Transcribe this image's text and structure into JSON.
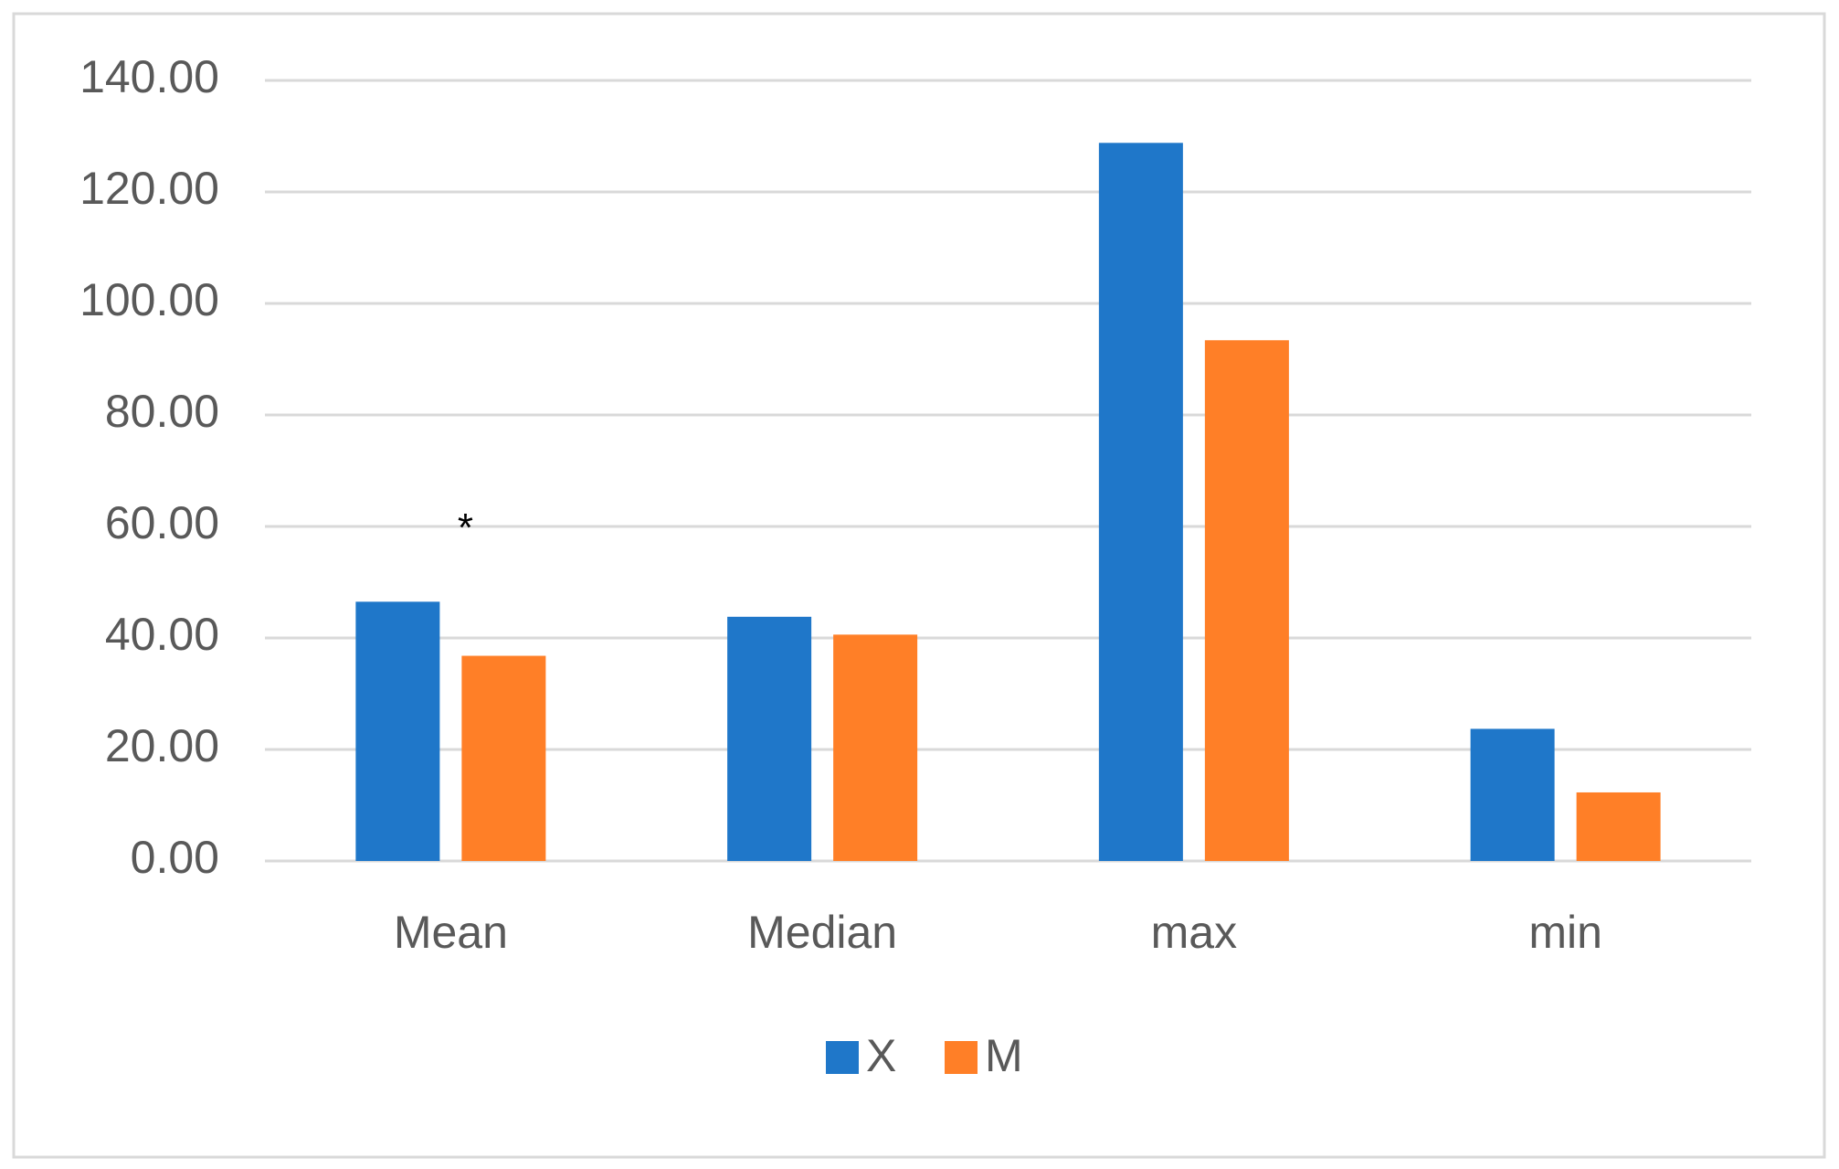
{
  "chart_data": {
    "type": "bar",
    "categories": [
      "Mean",
      "Median",
      "max",
      "min"
    ],
    "series": [
      {
        "name": "X",
        "color": "#1f77c9",
        "values": [
          46.5,
          43.8,
          128.8,
          23.7
        ]
      },
      {
        "name": "M",
        "color": "#ff7f27",
        "values": [
          36.8,
          40.6,
          93.4,
          12.3
        ]
      }
    ],
    "annotation": "*",
    "ylim": [
      0,
      140
    ],
    "yticks": [
      {
        "value": 0,
        "label": "0.00"
      },
      {
        "value": 20,
        "label": "20.00"
      },
      {
        "value": 40,
        "label": "40.00"
      },
      {
        "value": 60,
        "label": "60.00"
      },
      {
        "value": 80,
        "label": "80.00"
      },
      {
        "value": 100,
        "label": "100.00"
      },
      {
        "value": 120,
        "label": "120.00"
      },
      {
        "value": 140,
        "label": "140.00"
      }
    ],
    "grid": true,
    "legend": "bottom"
  }
}
